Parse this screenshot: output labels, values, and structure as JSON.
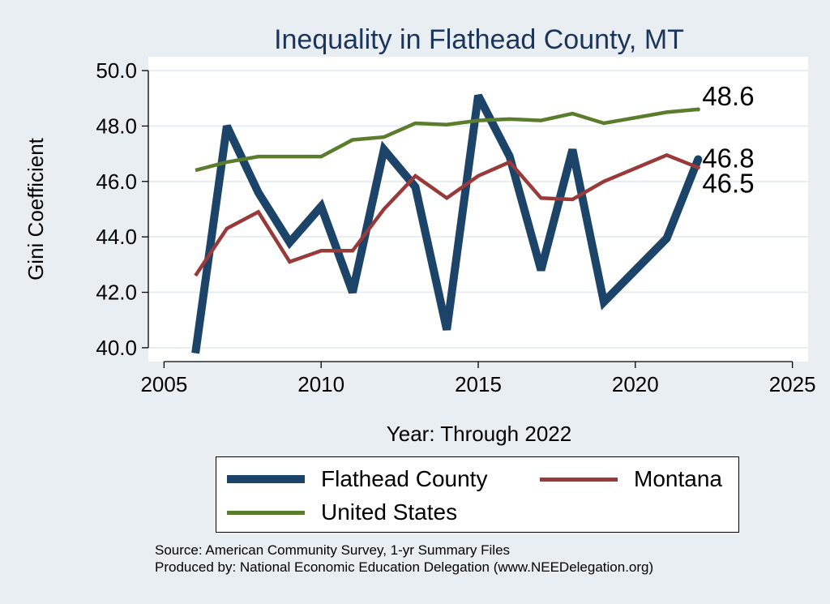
{
  "chart_data": {
    "type": "line",
    "title": "Inequality in Flathead County, MT",
    "xlabel": "Year: Through 2022",
    "ylabel": "Gini Coefficient",
    "xlim": [
      2005,
      2025
    ],
    "ylim": [
      39.5,
      50.5
    ],
    "x_ticks": [
      2005,
      2010,
      2015,
      2020,
      2025
    ],
    "x_tick_labels": [
      "2005",
      "2010",
      "2015",
      "2020",
      "2025"
    ],
    "y_ticks": [
      40,
      42,
      44,
      46,
      48,
      50
    ],
    "y_tick_labels": [
      "40.0",
      "42.0",
      "44.0",
      "46.0",
      "48.0",
      "50.0"
    ],
    "grid": true,
    "series": [
      {
        "name": "Flathead County",
        "color": "#1b4468",
        "x": [
          2006,
          2007,
          2008,
          2009,
          2010,
          2011,
          2012,
          2013,
          2014,
          2015,
          2016,
          2017,
          2018,
          2019,
          2021,
          2022
        ],
        "values": [
          39.8,
          48.0,
          45.6,
          43.8,
          45.1,
          42.0,
          47.15,
          45.8,
          40.65,
          49.1,
          46.9,
          42.8,
          47.15,
          41.65,
          43.95,
          46.8
        ],
        "end_label": "46.8"
      },
      {
        "name": "Montana",
        "color": "#993a3a",
        "x": [
          2006,
          2007,
          2008,
          2009,
          2010,
          2011,
          2012,
          2013,
          2014,
          2015,
          2016,
          2017,
          2018,
          2019,
          2021,
          2022
        ],
        "values": [
          42.6,
          44.3,
          44.9,
          43.1,
          43.5,
          43.5,
          45.0,
          46.2,
          45.4,
          46.2,
          46.7,
          45.4,
          45.35,
          46.0,
          46.95,
          46.5
        ],
        "end_label": "46.5"
      },
      {
        "name": "United States",
        "color": "#5a7c2b",
        "x": [
          2006,
          2007,
          2008,
          2009,
          2010,
          2011,
          2012,
          2013,
          2014,
          2015,
          2016,
          2017,
          2018,
          2019,
          2021,
          2022
        ],
        "values": [
          46.4,
          46.7,
          46.9,
          46.9,
          46.9,
          47.5,
          47.6,
          48.1,
          48.05,
          48.2,
          48.25,
          48.2,
          48.45,
          48.1,
          48.5,
          48.6
        ],
        "end_label": "48.6"
      }
    ]
  },
  "legend": {
    "items": [
      "Flathead County",
      "Montana",
      "United States"
    ]
  },
  "footnotes": {
    "source": "Source: American Community Survey, 1-yr Summary Files",
    "produced": "Produced by: National Economic Education Delegation (www.NEEDelegation.org)"
  }
}
